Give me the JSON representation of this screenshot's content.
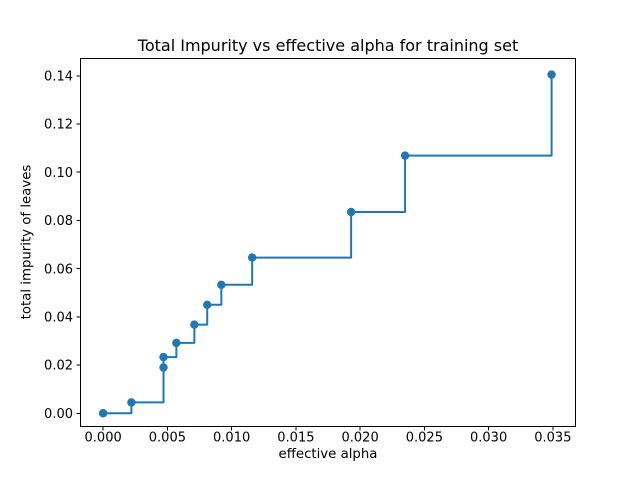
{
  "figure": {
    "background": "#ffffff"
  },
  "chart_data": {
    "type": "line",
    "drawstyle": "steps-post",
    "marker": "o",
    "title": "Total Impurity vs effective alpha for training set",
    "xlabel": "effective alpha",
    "ylabel": "total impurity of leaves",
    "line_color": "#1f77b4",
    "axis_color": "#000000",
    "grid": false,
    "legend": null,
    "xlim": [
      -0.0018,
      0.0368
    ],
    "ylim": [
      -0.0057,
      0.1474
    ],
    "xticks": [
      0.0,
      0.005,
      0.01,
      0.015,
      0.02,
      0.025,
      0.03,
      0.035
    ],
    "xtick_labels": [
      "0.000",
      "0.005",
      "0.010",
      "0.015",
      "0.020",
      "0.025",
      "0.030",
      "0.035"
    ],
    "yticks": [
      0.0,
      0.02,
      0.04,
      0.06,
      0.08,
      0.1,
      0.12,
      0.14
    ],
    "ytick_labels": [
      "0.00",
      "0.02",
      "0.04",
      "0.06",
      "0.08",
      "0.10",
      "0.12",
      "0.14"
    ],
    "series": [
      {
        "name": "total impurity of leaves (training set)",
        "x": [
          0.0,
          0.0022,
          0.0047,
          0.0047,
          0.0057,
          0.0071,
          0.0081,
          0.0092,
          0.0116,
          0.0193,
          0.0235,
          0.0349
        ],
        "y": [
          0.0,
          0.0045,
          0.019,
          0.0233,
          0.0292,
          0.0368,
          0.045,
          0.0533,
          0.0646,
          0.0835,
          0.1069,
          0.1405
        ]
      }
    ]
  }
}
